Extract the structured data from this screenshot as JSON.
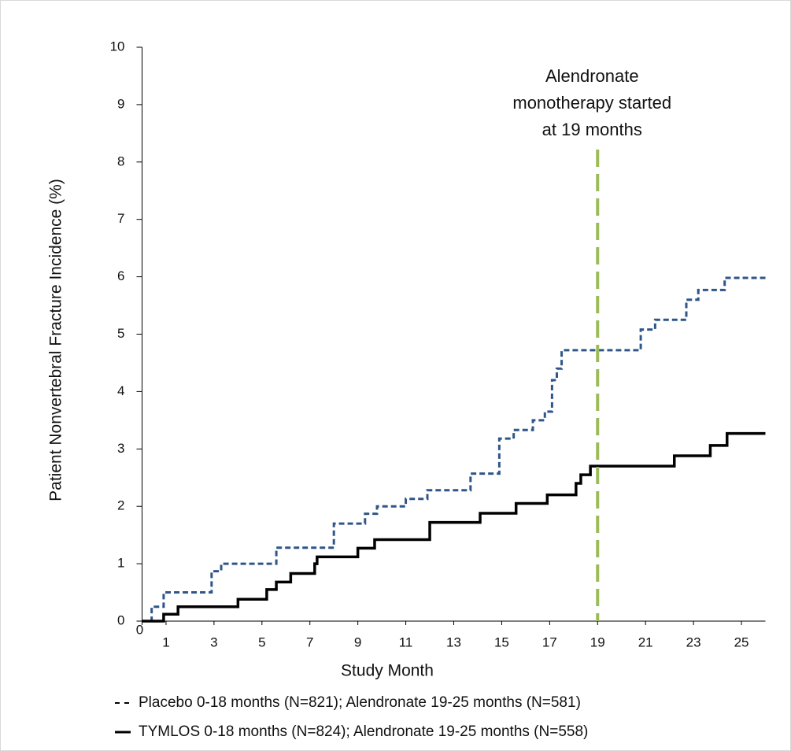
{
  "chart_data": {
    "type": "step-line",
    "xlabel": "Study Month",
    "ylabel": "Patient Nonvertebral Fracture Incidence (%)",
    "xlim": [
      0,
      26
    ],
    "xticks": [
      0,
      1,
      3,
      5,
      7,
      9,
      11,
      13,
      15,
      17,
      19,
      21,
      23,
      25
    ],
    "ylim": [
      0,
      10
    ],
    "yticks": [
      0,
      1,
      2,
      3,
      4,
      5,
      6,
      7,
      8,
      9,
      10
    ],
    "grid": false,
    "annotation": {
      "x": 19,
      "color": "#9bbb59",
      "lines": [
        "Alendronate",
        "monotherapy started",
        "at 19 months"
      ]
    },
    "series": [
      {
        "name": "Placebo 0-18 months (N=821); Alendronate 19-25 months (N=581)",
        "color": "#2f5688",
        "dash": true,
        "x": [
          0,
          0.4,
          0.9,
          2.9,
          3.3,
          5.6,
          8.0,
          9.3,
          9.8,
          11.0,
          11.9,
          13.7,
          14.9,
          15.5,
          16.3,
          16.8,
          17.1,
          17.3,
          17.5,
          20.8,
          21.4,
          22.7,
          23.2,
          24.3,
          26
        ],
        "values": [
          0,
          0.25,
          0.5,
          0.87,
          1.0,
          1.28,
          1.7,
          1.87,
          2.0,
          2.13,
          2.28,
          2.57,
          3.18,
          3.33,
          3.5,
          3.65,
          4.2,
          4.4,
          4.72,
          5.08,
          5.25,
          5.6,
          5.77,
          5.98,
          5.98
        ]
      },
      {
        "name": "TYMLOS 0-18 months (N=824); Alendronate 19-25 months (N=558)",
        "color": "#000000",
        "dash": false,
        "x": [
          0,
          0.9,
          1.5,
          4.0,
          5.2,
          5.6,
          6.2,
          7.2,
          7.3,
          9.0,
          9.7,
          12.0,
          14.1,
          15.6,
          16.9,
          18.1,
          18.3,
          18.7,
          22.2,
          23.7,
          24.4,
          26
        ],
        "values": [
          0,
          0.12,
          0.25,
          0.38,
          0.55,
          0.68,
          0.83,
          1.0,
          1.12,
          1.27,
          1.42,
          1.72,
          1.88,
          2.05,
          2.2,
          2.4,
          2.55,
          2.7,
          2.88,
          3.06,
          3.27,
          3.27
        ]
      }
    ]
  }
}
